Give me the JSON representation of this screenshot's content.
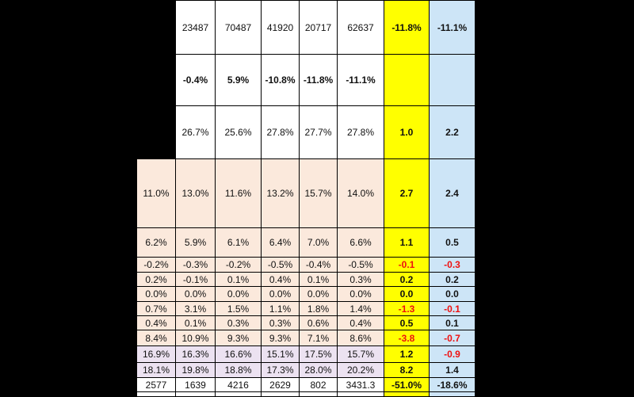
{
  "rows": [
    [
      "",
      "23487",
      "70487",
      "41920",
      "20717",
      "62637",
      "-11.8%",
      "-11.1%"
    ],
    [
      "",
      "-0.4%",
      "5.9%",
      "-10.8%",
      "-11.8%",
      "-11.1%",
      "",
      ""
    ],
    [
      "",
      "26.7%",
      "25.6%",
      "27.8%",
      "27.7%",
      "27.8%",
      "1.0",
      "2.2"
    ],
    [
      "11.0%",
      "13.0%",
      "11.6%",
      "13.2%",
      "15.7%",
      "14.0%",
      "2.7",
      "2.4"
    ],
    [
      "6.2%",
      "5.9%",
      "6.1%",
      "6.4%",
      "7.0%",
      "6.6%",
      "1.1",
      "0.5"
    ],
    [
      "-0.2%",
      "-0.3%",
      "-0.2%",
      "-0.5%",
      "-0.4%",
      "-0.5%",
      "-0.1",
      "-0.3"
    ],
    [
      "0.2%",
      "-0.1%",
      "0.1%",
      "0.4%",
      "0.1%",
      "0.3%",
      "0.2",
      "0.2"
    ],
    [
      "0.0%",
      "0.0%",
      "0.0%",
      "0.0%",
      "0.0%",
      "0.0%",
      "0.0",
      "0.0"
    ],
    [
      "0.7%",
      "3.1%",
      "1.5%",
      "1.1%",
      "1.8%",
      "1.4%",
      "-1.3",
      "-0.1"
    ],
    [
      "0.4%",
      "0.1%",
      "0.3%",
      "0.3%",
      "0.6%",
      "0.4%",
      "0.5",
      "0.1"
    ],
    [
      "8.4%",
      "10.9%",
      "9.3%",
      "9.3%",
      "7.1%",
      "8.6%",
      "-3.8",
      "-0.7"
    ],
    [
      "16.9%",
      "16.3%",
      "16.6%",
      "15.1%",
      "17.5%",
      "15.7%",
      "1.2",
      "-0.9"
    ],
    [
      "18.1%",
      "19.8%",
      "18.8%",
      "17.3%",
      "28.0%",
      "20.2%",
      "8.2",
      "1.4"
    ],
    [
      "2577",
      "1639",
      "4216",
      "2629",
      "802",
      "3431.3",
      "-51.0%",
      "-18.6%"
    ],
    [
      "",
      "",
      "",
      "",
      "",
      "",
      "",
      ""
    ]
  ]
}
